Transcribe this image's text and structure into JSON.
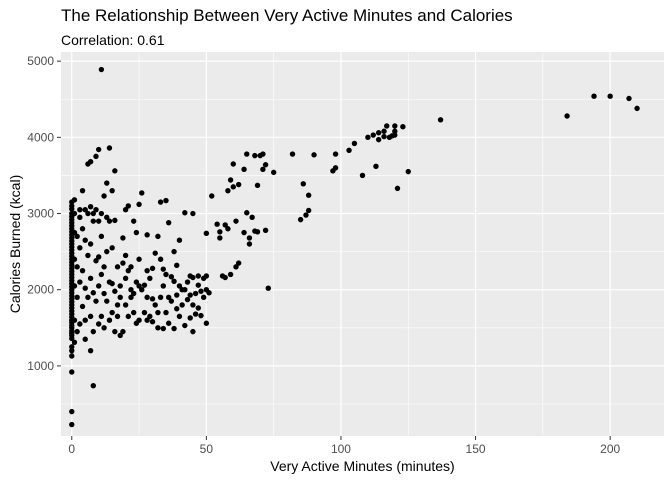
{
  "chart_data": {
    "type": "scatter",
    "title": "The Relationship Between Very Active Minutes and Calories",
    "subtitle": "Correlation: 0.61",
    "xlabel": "Very Active Minutes (minutes)",
    "ylabel": "Calories Burned (kcal)",
    "xlim": [
      -4,
      220
    ],
    "ylim": [
      80,
      5120
    ],
    "x_ticks": [
      0,
      50,
      100,
      150,
      200
    ],
    "y_ticks": [
      1000,
      2000,
      3000,
      4000,
      5000
    ],
    "background": "#ebebeb",
    "grid": true,
    "point_color": "#000000",
    "points": [
      [
        0,
        230
      ],
      [
        0,
        400
      ],
      [
        0,
        920
      ],
      [
        0,
        1130
      ],
      [
        0,
        1200
      ],
      [
        0,
        1250
      ],
      [
        0,
        1360
      ],
      [
        0,
        1400
      ],
      [
        0,
        1430
      ],
      [
        0,
        1460
      ],
      [
        0,
        1500
      ],
      [
        0,
        1530
      ],
      [
        0,
        1570
      ],
      [
        0,
        1600
      ],
      [
        0,
        1640
      ],
      [
        0,
        1680
      ],
      [
        0,
        1720
      ],
      [
        0,
        1760
      ],
      [
        0,
        1800
      ],
      [
        0,
        1840
      ],
      [
        0,
        1880
      ],
      [
        0,
        1920
      ],
      [
        0,
        1960
      ],
      [
        0,
        2000
      ],
      [
        0,
        2040
      ],
      [
        0,
        2080
      ],
      [
        0,
        2120
      ],
      [
        0,
        2160
      ],
      [
        0,
        2200
      ],
      [
        0,
        2240
      ],
      [
        0,
        2280
      ],
      [
        0,
        2320
      ],
      [
        0,
        2360
      ],
      [
        0,
        2400
      ],
      [
        0,
        2440
      ],
      [
        0,
        2480
      ],
      [
        0,
        2520
      ],
      [
        0,
        2560
      ],
      [
        0,
        2600
      ],
      [
        0,
        2640
      ],
      [
        0,
        2680
      ],
      [
        0,
        2720
      ],
      [
        0,
        2760
      ],
      [
        0,
        2800
      ],
      [
        0,
        2840
      ],
      [
        0,
        2880
      ],
      [
        0,
        2920
      ],
      [
        0,
        2960
      ],
      [
        0,
        3000
      ],
      [
        0,
        3060
      ],
      [
        0,
        3100
      ],
      [
        0,
        3150
      ],
      [
        1,
        1310
      ],
      [
        1,
        1600
      ],
      [
        1,
        2050
      ],
      [
        1,
        2400
      ],
      [
        1,
        2750
      ],
      [
        1,
        3000
      ],
      [
        1,
        3180
      ],
      [
        2,
        1450
      ],
      [
        2,
        1900
      ],
      [
        2,
        2300
      ],
      [
        2,
        2700
      ],
      [
        3,
        1550
      ],
      [
        3,
        2100
      ],
      [
        3,
        2550
      ],
      [
        3,
        2950
      ],
      [
        3,
        3050
      ],
      [
        4,
        1780
      ],
      [
        4,
        2250
      ],
      [
        4,
        2800
      ],
      [
        4,
        3300
      ],
      [
        5,
        1600
      ],
      [
        5,
        2020
      ],
      [
        5,
        2650
      ],
      [
        5,
        3050
      ],
      [
        5,
        1350
      ],
      [
        6,
        1900
      ],
      [
        6,
        2450
      ],
      [
        6,
        3000
      ],
      [
        6,
        3650
      ],
      [
        7,
        1200
      ],
      [
        7,
        1650
      ],
      [
        7,
        2150
      ],
      [
        7,
        2600
      ],
      [
        7,
        3090
      ],
      [
        7,
        3680
      ],
      [
        8,
        1450
      ],
      [
        8,
        1960
      ],
      [
        8,
        2900
      ],
      [
        8,
        3000
      ],
      [
        8,
        740
      ],
      [
        9,
        1850
      ],
      [
        9,
        2380
      ],
      [
        9,
        3050
      ],
      [
        9,
        3750
      ],
      [
        10,
        1550
      ],
      [
        10,
        2050
      ],
      [
        10,
        2430
      ],
      [
        10,
        2900
      ],
      [
        10,
        3840
      ],
      [
        11,
        1650
      ],
      [
        11,
        2200
      ],
      [
        11,
        2700
      ],
      [
        11,
        3000
      ],
      [
        11,
        4890
      ],
      [
        12,
        1500
      ],
      [
        12,
        1950
      ],
      [
        12,
        2300
      ],
      [
        12,
        3230
      ],
      [
        13,
        1850
      ],
      [
        13,
        2500
      ],
      [
        13,
        2950
      ],
      [
        13,
        3400
      ],
      [
        14,
        1600
      ],
      [
        14,
        2100
      ],
      [
        14,
        2900
      ],
      [
        14,
        3860
      ],
      [
        15,
        1700
      ],
      [
        15,
        2080
      ],
      [
        15,
        2550
      ],
      [
        15,
        3300
      ],
      [
        16,
        1450
      ],
      [
        16,
        1980
      ],
      [
        16,
        2910
      ],
      [
        16,
        3560
      ],
      [
        17,
        1650
      ],
      [
        17,
        1800
      ],
      [
        17,
        2300
      ],
      [
        18,
        1400
      ],
      [
        18,
        1900
      ],
      [
        18,
        2050
      ],
      [
        19,
        1450
      ],
      [
        19,
        2680
      ],
      [
        19,
        2350
      ],
      [
        20,
        1800
      ],
      [
        20,
        2150
      ],
      [
        20,
        3050
      ],
      [
        20,
        2450
      ],
      [
        21,
        1650
      ],
      [
        21,
        2250
      ],
      [
        21,
        3100
      ],
      [
        22,
        1900
      ],
      [
        22,
        2000
      ],
      [
        22,
        2300
      ],
      [
        23,
        1700
      ],
      [
        23,
        1950
      ],
      [
        23,
        2900
      ],
      [
        24,
        1560
      ],
      [
        24,
        2100
      ],
      [
        24,
        2750
      ],
      [
        25,
        1600
      ],
      [
        25,
        2050
      ],
      [
        25,
        2400
      ],
      [
        25,
        3120
      ],
      [
        26,
        2000
      ],
      [
        26,
        3270
      ],
      [
        27,
        1700
      ],
      [
        27,
        2060
      ],
      [
        28,
        1600
      ],
      [
        28,
        1900
      ],
      [
        28,
        2250
      ],
      [
        28,
        2720
      ],
      [
        29,
        1650
      ],
      [
        29,
        2150
      ],
      [
        30,
        1580
      ],
      [
        30,
        1880
      ],
      [
        30,
        2280
      ],
      [
        31,
        1800
      ],
      [
        31,
        2480
      ],
      [
        32,
        1700
      ],
      [
        32,
        2700
      ],
      [
        32,
        1500
      ],
      [
        33,
        1900
      ],
      [
        33,
        2400
      ],
      [
        33,
        3150
      ],
      [
        34,
        1490
      ],
      [
        34,
        2050
      ],
      [
        34,
        2270
      ],
      [
        35,
        1700
      ],
      [
        35,
        2200
      ],
      [
        35,
        3170
      ],
      [
        36,
        1560
      ],
      [
        36,
        1900
      ],
      [
        36,
        2880
      ],
      [
        37,
        1850
      ],
      [
        37,
        2170
      ],
      [
        38,
        1490
      ],
      [
        38,
        2110
      ],
      [
        38,
        2500
      ],
      [
        39,
        1750
      ],
      [
        39,
        1930
      ],
      [
        39,
        2320
      ],
      [
        40,
        1650
      ],
      [
        40,
        2050
      ],
      [
        40,
        2650
      ],
      [
        41,
        1800
      ],
      [
        41,
        2000
      ],
      [
        42,
        1530
      ],
      [
        42,
        2000
      ],
      [
        42,
        3010
      ],
      [
        43,
        1870
      ],
      [
        43,
        2100
      ],
      [
        44,
        1630
      ],
      [
        44,
        1930
      ],
      [
        44,
        2180
      ],
      [
        45,
        1800
      ],
      [
        45,
        1450
      ],
      [
        45,
        2160
      ],
      [
        45,
        3000
      ],
      [
        46,
        1680
      ],
      [
        46,
        1950
      ],
      [
        47,
        1760
      ],
      [
        47,
        2060
      ],
      [
        47,
        2180
      ],
      [
        48,
        1980
      ],
      [
        48,
        1660
      ],
      [
        49,
        1900
      ],
      [
        49,
        2150
      ],
      [
        50,
        1560
      ],
      [
        50,
        2000
      ],
      [
        50,
        2180
      ],
      [
        50,
        2740
      ],
      [
        51,
        1960
      ],
      [
        52,
        3230
      ],
      [
        54,
        2860
      ],
      [
        55,
        2680
      ],
      [
        55,
        2760
      ],
      [
        56,
        2180
      ],
      [
        57,
        2160
      ],
      [
        57,
        2850
      ],
      [
        58,
        2800
      ],
      [
        58,
        3300
      ],
      [
        59,
        3440
      ],
      [
        59,
        2200
      ],
      [
        60,
        3650
      ],
      [
        60,
        3350
      ],
      [
        61,
        2900
      ],
      [
        61,
        2300
      ],
      [
        62,
        3380
      ],
      [
        62,
        2350
      ],
      [
        64,
        3580
      ],
      [
        64,
        2750
      ],
      [
        65,
        3010
      ],
      [
        65,
        3780
      ],
      [
        66,
        2680
      ],
      [
        66,
        2600
      ],
      [
        67,
        2950
      ],
      [
        68,
        2770
      ],
      [
        68,
        3760
      ],
      [
        69,
        2760
      ],
      [
        69,
        3370
      ],
      [
        70,
        3760
      ],
      [
        71,
        3780
      ],
      [
        71,
        3580
      ],
      [
        72,
        3640
      ],
      [
        72,
        2780
      ],
      [
        73,
        2020
      ],
      [
        75,
        3540
      ],
      [
        82,
        3780
      ],
      [
        85,
        2920
      ],
      [
        86,
        3390
      ],
      [
        87,
        2980
      ],
      [
        88,
        3240
      ],
      [
        88,
        3040
      ],
      [
        90,
        3770
      ],
      [
        97,
        3560
      ],
      [
        98,
        3780
      ],
      [
        98,
        3600
      ],
      [
        103,
        3830
      ],
      [
        105,
        3920
      ],
      [
        108,
        3500
      ],
      [
        110,
        4000
      ],
      [
        112,
        4030
      ],
      [
        113,
        3620
      ],
      [
        114,
        3970
      ],
      [
        114,
        4060
      ],
      [
        116,
        4010
      ],
      [
        116,
        4080
      ],
      [
        117,
        4150
      ],
      [
        118,
        4000
      ],
      [
        119,
        4020
      ],
      [
        120,
        4080
      ],
      [
        120,
        4150
      ],
      [
        120,
        4030
      ],
      [
        121,
        3330
      ],
      [
        123,
        4140
      ],
      [
        125,
        3550
      ],
      [
        137,
        4230
      ],
      [
        184,
        4280
      ],
      [
        194,
        4540
      ],
      [
        200,
        4540
      ],
      [
        207,
        4510
      ],
      [
        210,
        4380
      ]
    ]
  }
}
